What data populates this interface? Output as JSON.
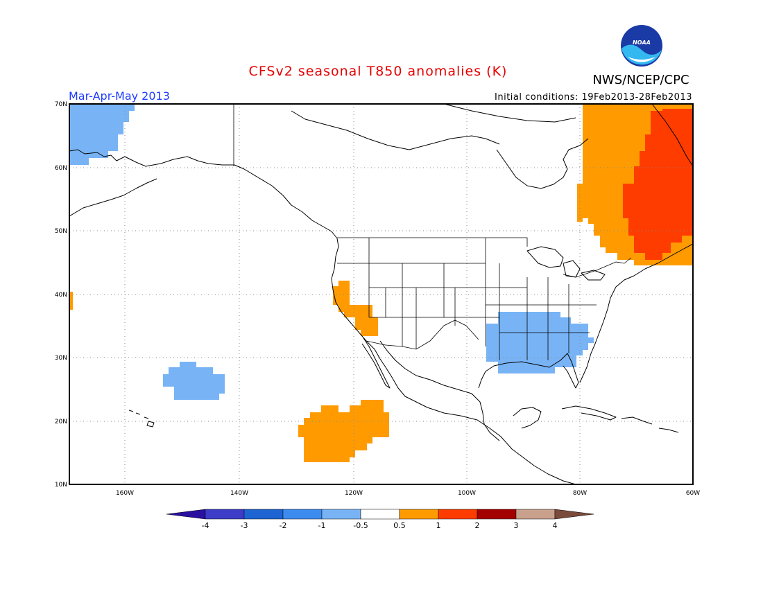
{
  "title": "CFSv2 seasonal T850 anomalies (K)",
  "agency": "NWS/NCEP/CPC",
  "logo_text": "NOAA",
  "season": "Mar-Apr-May 2013",
  "initial_conditions": "Initial conditions: 19Feb2013-28Feb2013",
  "map": {
    "lon_range": [
      -172,
      -60
    ],
    "lat_range": [
      10,
      70
    ],
    "lon_ticks": [
      "160W",
      "140W",
      "120W",
      "100W",
      "80W",
      "60W"
    ],
    "lat_ticks": [
      "10N",
      "20N",
      "30N",
      "40N",
      "50N",
      "60N",
      "70N"
    ],
    "grid": "dotted"
  },
  "colorbar": {
    "labels": [
      "-4",
      "-3",
      "-2",
      "-1",
      "-0.5",
      "0.5",
      "1",
      "2",
      "3",
      "4"
    ],
    "colors": [
      "#2a0fa0",
      "#3c3cc8",
      "#1e64d2",
      "#3c8cf0",
      "#78b4f5",
      "#ffffff",
      "#ff9b00",
      "#ff3c00",
      "#a50000",
      "#c8a08c",
      "#7a4a3a"
    ]
  },
  "anomaly_regions": [
    {
      "name": "NE Pacific / Alaska cool",
      "category": "-1 to -0.5",
      "color": "#78b4f5"
    },
    {
      "name": "Hawaii-east cool",
      "category": "-1 to -0.5",
      "color": "#78b4f5"
    },
    {
      "name": "US Southeast cool",
      "category": "-1 to -0.5",
      "color": "#78b4f5"
    },
    {
      "name": "California warm",
      "category": "0.5 to 1",
      "color": "#ff9b00"
    },
    {
      "name": "East Pacific warm",
      "category": "0.5 to 1",
      "color": "#ff9b00"
    },
    {
      "name": "Eastern Canada warm",
      "category": "0.5 to 1",
      "color": "#ff9b00"
    },
    {
      "name": "Labrador/Quebec warm",
      "category": "1 to 2",
      "color": "#ff3c00"
    }
  ]
}
